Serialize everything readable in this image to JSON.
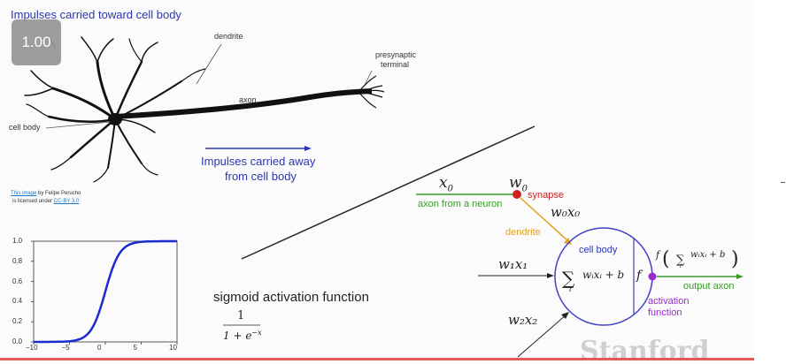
{
  "player": {
    "speed_label": "1.00",
    "progress_fraction": 1.0
  },
  "neuron": {
    "impulses_toward": "Impulses carried toward cell body",
    "dendrite": "dendrite",
    "presynaptic_1": "presynaptic",
    "presynaptic_2": "terminal",
    "axon": "axon",
    "cell_body": "cell body",
    "impulses_away_1": "Impulses carried away",
    "impulses_away_2": "from cell body",
    "credit_link": "This image",
    "credit_text1": " by Felipe Perucho",
    "credit_text2": "is licensed under ",
    "credit_license": "CC-BY 3.0"
  },
  "sigmoid": {
    "title": "sigmoid activation function",
    "numerator": "1",
    "denominator": "1 + e",
    "exponent": "−x"
  },
  "model": {
    "x0": "x",
    "x0_sub": "0",
    "w0": "w",
    "w0_sub": "0",
    "synapse": "synapse",
    "axon_from": "axon from a neuron",
    "w0x0": "w₀x₀",
    "dendrite": "dendrite",
    "cell_body": "cell body",
    "w1x1": "w₁x₁",
    "sum_expr": "wᵢxᵢ + b",
    "sum_index": "i",
    "f_label": "f",
    "f_expr": "wᵢxᵢ + b",
    "output_axon": "output axon",
    "activation_1": "activation",
    "activation_2": "function",
    "w2x2": "w₂x₂"
  },
  "watermark": "Stanford",
  "colors": {
    "blue_text": "#2a36b0",
    "curve": "#1a2ad0",
    "green": "#3a9a2a",
    "orange": "#e0a020",
    "red": "#d02020",
    "purple": "#9a2ad0",
    "circle": "#4040c0"
  },
  "chart_data": {
    "type": "line",
    "title": "",
    "xlabel": "",
    "ylabel": "",
    "xlim": [
      -10,
      10
    ],
    "ylim": [
      0.0,
      1.0
    ],
    "x_ticks": [
      "−10",
      "−5",
      "0",
      "5",
      "10"
    ],
    "y_ticks": [
      "0.0",
      "0.2",
      "0.4",
      "0.6",
      "0.8",
      "1.0"
    ],
    "series": [
      {
        "name": "sigmoid",
        "function": "1/(1+exp(-x))"
      }
    ]
  }
}
